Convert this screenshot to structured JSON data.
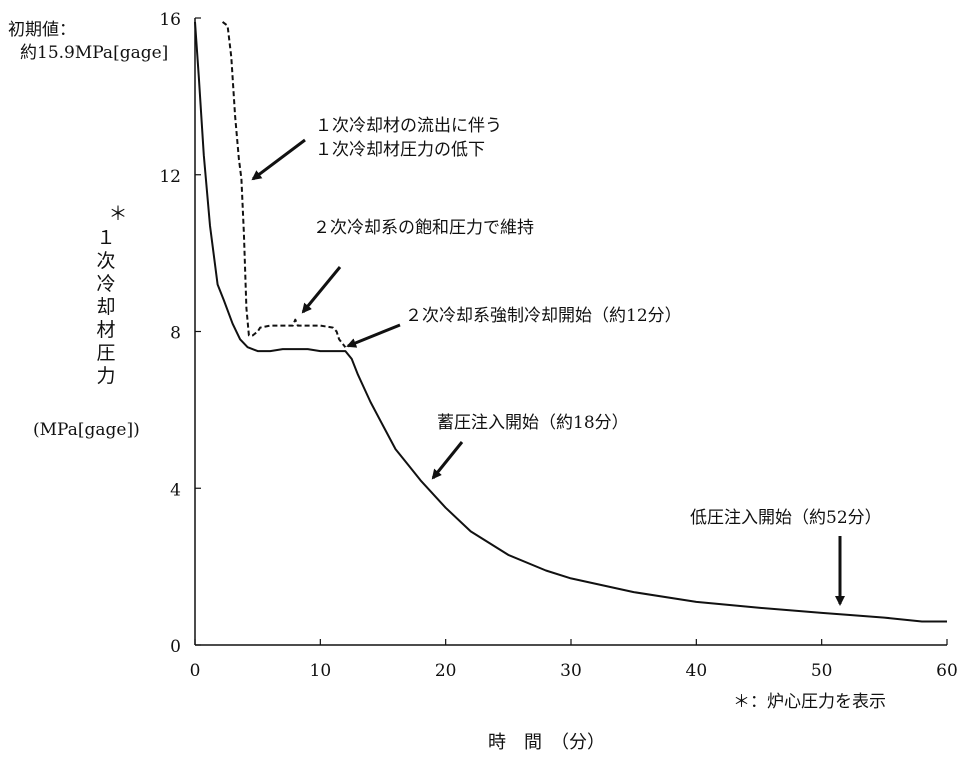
{
  "chart_data": {
    "type": "line",
    "xlabel": "時　間　（分）",
    "ylabel_star": "＊",
    "ylabel_chars": [
      "１",
      "次",
      "冷",
      "却",
      "材",
      "圧",
      "力"
    ],
    "ylabel_unit": "(MPa[gage])",
    "xlim": [
      0,
      60
    ],
    "ylim": [
      0,
      16
    ],
    "xticks": [
      "0",
      "10",
      "20",
      "30",
      "40",
      "50",
      "60"
    ],
    "yticks": [
      "0",
      "4",
      "8",
      "12",
      "16"
    ],
    "footnote": "＊：炉心圧力を表示",
    "series": [
      {
        "style": "solid",
        "x": [
          0,
          0.3,
          0.7,
          1.2,
          1.8,
          2.3,
          3.0,
          3.6,
          4.2,
          5.0,
          6.0,
          7.0,
          8.0,
          9.0,
          10.0,
          11.0,
          12.0,
          12.5,
          13.0,
          14.0,
          15.0,
          16.0,
          17.0,
          18.0,
          20.0,
          22.0,
          25.0,
          28.0,
          30.0,
          35.0,
          40.0,
          45.0,
          50.0,
          52.0,
          55.0,
          58.0,
          60.0
        ],
        "y": [
          15.9,
          14.5,
          12.5,
          10.7,
          9.2,
          8.8,
          8.2,
          7.8,
          7.6,
          7.5,
          7.5,
          7.55,
          7.55,
          7.55,
          7.5,
          7.5,
          7.5,
          7.3,
          6.9,
          6.2,
          5.6,
          5.0,
          4.6,
          4.2,
          3.5,
          2.9,
          2.3,
          1.9,
          1.7,
          1.35,
          1.1,
          0.95,
          0.82,
          0.77,
          0.7,
          0.6,
          0.6
        ]
      },
      {
        "style": "dashed",
        "x": [
          2.2,
          2.6,
          2.9,
          3.2,
          3.5,
          3.7,
          3.9,
          4.1,
          4.3,
          4.6,
          5.0,
          5.2,
          6.0,
          7.0,
          7.8,
          8.0,
          8.2,
          9.0,
          10.0,
          11.0,
          11.3,
          11.5,
          12.0
        ],
        "y": [
          15.9,
          15.8,
          15.0,
          13.5,
          12.4,
          11.9,
          10.5,
          8.6,
          7.9,
          7.9,
          8.0,
          8.1,
          8.15,
          8.15,
          8.15,
          8.3,
          8.15,
          8.15,
          8.15,
          8.1,
          8.0,
          7.8,
          7.6
        ]
      }
    ],
    "annotations": {
      "initial": [
        "初期値：",
        "約15.9MPa[gage]"
      ],
      "flow_out": [
        "１次冷却材の流出に伴う",
        "１次冷却材圧力の低下"
      ],
      "saturation": "２次冷却系の飽和圧力で維持",
      "forced_cooling": "２次冷却系強制冷却開始（約12分）",
      "accumulator": "蓄圧注入開始（約18分）",
      "low_pressure": "低圧注入開始（約52分）"
    }
  }
}
